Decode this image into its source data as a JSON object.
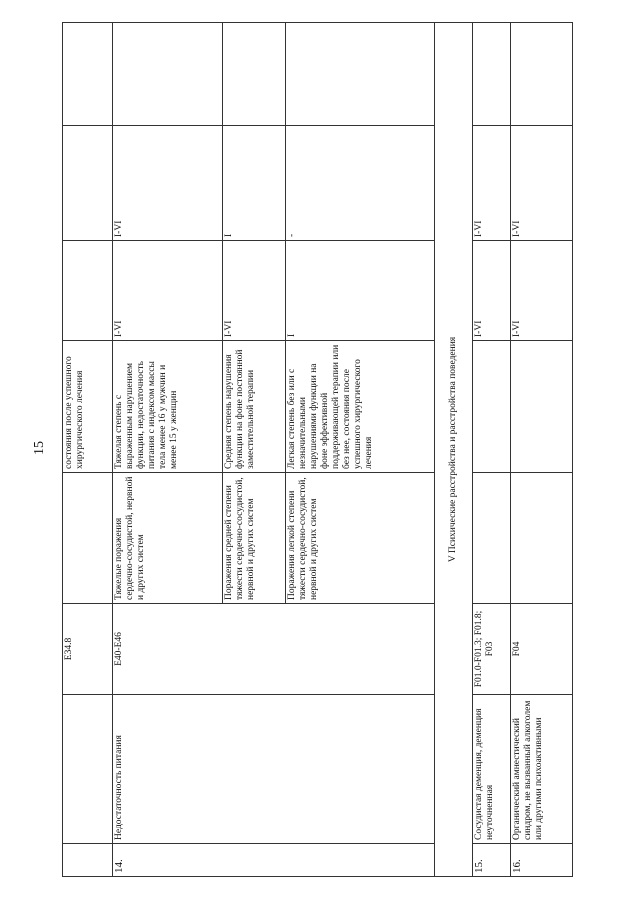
{
  "page_number": "15",
  "section_title": "V Психические расстройства и расстройства поведения",
  "continuation_row": {
    "code": "E34.8",
    "severity": "состояния после успешного хирургического лечения"
  },
  "row14": {
    "number": "14.",
    "name": "Недостаточность питания",
    "code": "E40-E46",
    "subrows": [
      {
        "form": "Тяжелые поражения сердечно-сосудистой, нервной и других систем",
        "severity": "Тяжелая степень с выраженным нарушением функции, недостаточность питания с индексом массы тела менее 16 у мужчин и менее 15 у женщин",
        "col6": "I-VI",
        "col7": "I-VI"
      },
      {
        "form": "Поражения средней степени тяжести сердечно-сосудистой, нервной и других систем",
        "severity": "Средняя степень нарушения функции на фоне постоянной заместительной терапии",
        "col6": "I-VI",
        "col7": "I"
      },
      {
        "form": "Поражения легкой степени тяжести сердечно-сосудистой, нервной и других систем",
        "severity": "Легкая степень без или с незначительными нарушениями функции на фоне эффективной поддерживающей терапии или без нее, состояния после успешного хирургического лечения",
        "col6": "I",
        "col7": "-"
      }
    ]
  },
  "row15": {
    "number": "15.",
    "name": "Сосудистая деменция, деменция неуточненная",
    "code": "F01.0-F01.3; F01.8; F03",
    "col6": "I-VI",
    "col7": "I-VI"
  },
  "row16": {
    "number": "16.",
    "name": "Органический амнестический синдром, не вызванный алкоголем или другими психоактивными",
    "code": "F04",
    "col6": "I-VI",
    "col7": "I-VI"
  }
}
